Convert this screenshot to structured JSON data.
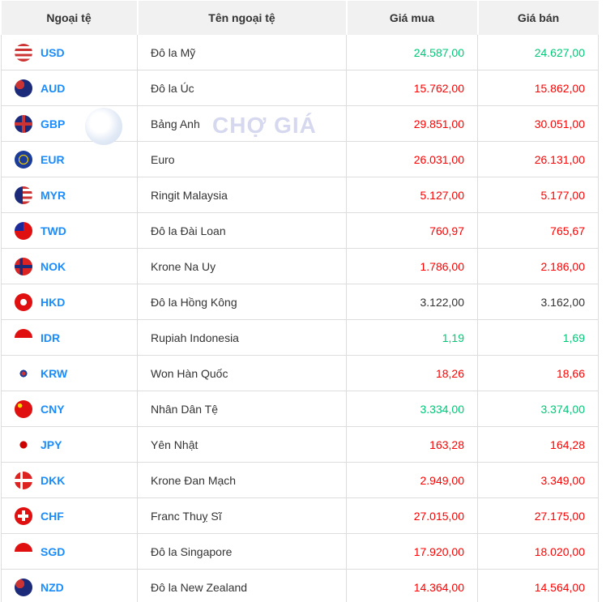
{
  "headers": [
    "Ngoại tệ",
    "Tên ngoại tệ",
    "Giá mua",
    "Giá bán"
  ],
  "colors": {
    "up": "#00c878",
    "down": "#ff0000",
    "flat": "#333333",
    "code": "#1a8cff"
  },
  "watermark": {
    "text": "CHỢ GIÁ"
  },
  "rows": [
    {
      "code": "USD",
      "name": "Đô la Mỹ",
      "buy": "24.587,00",
      "sell": "24.627,00",
      "trend": "green",
      "flag": "linear-gradient(#c33 0 14%,#fff 14% 28%,#c33 28% 42%,#fff 42% 56%,#c33 56% 70%,#fff 70% 84%,#c33 84%)"
    },
    {
      "code": "AUD",
      "name": "Đô la Úc",
      "buy": "15.762,00",
      "sell": "15.862,00",
      "trend": "red",
      "flag": "radial-gradient(circle at 30% 30%,#c33 0 25%,#1c2a7a 26%)"
    },
    {
      "code": "GBP",
      "name": "Bảng Anh",
      "buy": "29.851,00",
      "sell": "30.051,00",
      "trend": "red",
      "flag": "linear-gradient(transparent 40%,#c33 40% 60%,transparent 60%),linear-gradient(90deg,#1c2a7a 40%,#c33 40% 60%,#1c2a7a 60%)"
    },
    {
      "code": "EUR",
      "name": "Euro",
      "buy": "26.031,00",
      "sell": "26.131,00",
      "trend": "red",
      "flag": "radial-gradient(circle,#1c3c99 0 30%,#e8c900 32% 38%,#1c3c99 40%)"
    },
    {
      "code": "MYR",
      "name": "Ringit Malaysia",
      "buy": "5.127,00",
      "sell": "5.177,00",
      "trend": "red",
      "flag": "linear-gradient(90deg,#1c2a7a 45%,transparent 45%),linear-gradient(#c33 0 14%,#fff 14% 28%,#c33 28% 42%,#fff 42% 56%,#c33 56% 70%,#fff 70% 84%,#c33 84%)"
    },
    {
      "code": "TWD",
      "name": "Đô la Đài Loan",
      "buy": "760,97",
      "sell": "765,67",
      "trend": "red",
      "flag": "linear-gradient(90deg,#1c2a9a 50%,transparent 50%) top/100% 50% no-repeat,#e01010"
    },
    {
      "code": "NOK",
      "name": "Krone Na Uy",
      "buy": "1.786,00",
      "sell": "2.186,00",
      "trend": "red",
      "flag": "linear-gradient(transparent 40%,#1c2a7a 40% 60%,transparent 60%),linear-gradient(90deg,#d22 30%,#1c2a7a 30% 45%,#d22 45%)"
    },
    {
      "code": "HKD",
      "name": "Đô la Hồng Kông",
      "buy": "3.122,00",
      "sell": "3.162,00",
      "trend": "black",
      "flag": "radial-gradient(circle,#fff 0 25%,#e01010 27%)"
    },
    {
      "code": "IDR",
      "name": "Rupiah Indonesia",
      "buy": "1,19",
      "sell": "1,69",
      "trend": "green",
      "flag": "linear-gradient(#e01010 50%,#fff 50%)"
    },
    {
      "code": "KRW",
      "name": "Won Hàn Quốc",
      "buy": "18,26",
      "sell": "18,66",
      "trend": "red",
      "flag": "radial-gradient(circle,#c33 0 15%,#1c3c99 16% 28%,#fff 29%)"
    },
    {
      "code": "CNY",
      "name": "Nhân Dân Tệ",
      "buy": "3.334,00",
      "sell": "3.374,00",
      "trend": "green",
      "flag": "radial-gradient(circle at 30% 30%,#ffd700 0 12%,#e01010 13%)"
    },
    {
      "code": "JPY",
      "name": "Yên Nhật",
      "buy": "163,28",
      "sell": "164,28",
      "trend": "red",
      "flag": "radial-gradient(circle,#c00 0 28%,#fff 30%)"
    },
    {
      "code": "DKK",
      "name": "Krone Đan Mạch",
      "buy": "2.949,00",
      "sell": "3.349,00",
      "trend": "red",
      "flag": "linear-gradient(transparent 42%,#fff 42% 58%,transparent 58%),linear-gradient(90deg,#d22 32%,#fff 32% 46%,#d22 46%)"
    },
    {
      "code": "CHF",
      "name": "Franc Thuỵ Sĩ",
      "buy": "27.015,00",
      "sell": "27.175,00",
      "trend": "red",
      "flag": "linear-gradient(transparent 42%,#fff 42% 58%,transparent 58%) center/60% 100% no-repeat,linear-gradient(90deg,transparent 42%,#fff 42% 58%,transparent 58%) center/100% 60% no-repeat,#e01010"
    },
    {
      "code": "SGD",
      "name": "Đô la Singapore",
      "buy": "17.920,00",
      "sell": "18.020,00",
      "trend": "red",
      "flag": "linear-gradient(#e01010 50%,#fff 50%)"
    },
    {
      "code": "NZD",
      "name": "Đô la New Zealand",
      "buy": "14.364,00",
      "sell": "14.564,00",
      "trend": "red",
      "flag": "radial-gradient(circle at 30% 30%,#c33 0 25%,#1c2a7a 26%)"
    }
  ]
}
